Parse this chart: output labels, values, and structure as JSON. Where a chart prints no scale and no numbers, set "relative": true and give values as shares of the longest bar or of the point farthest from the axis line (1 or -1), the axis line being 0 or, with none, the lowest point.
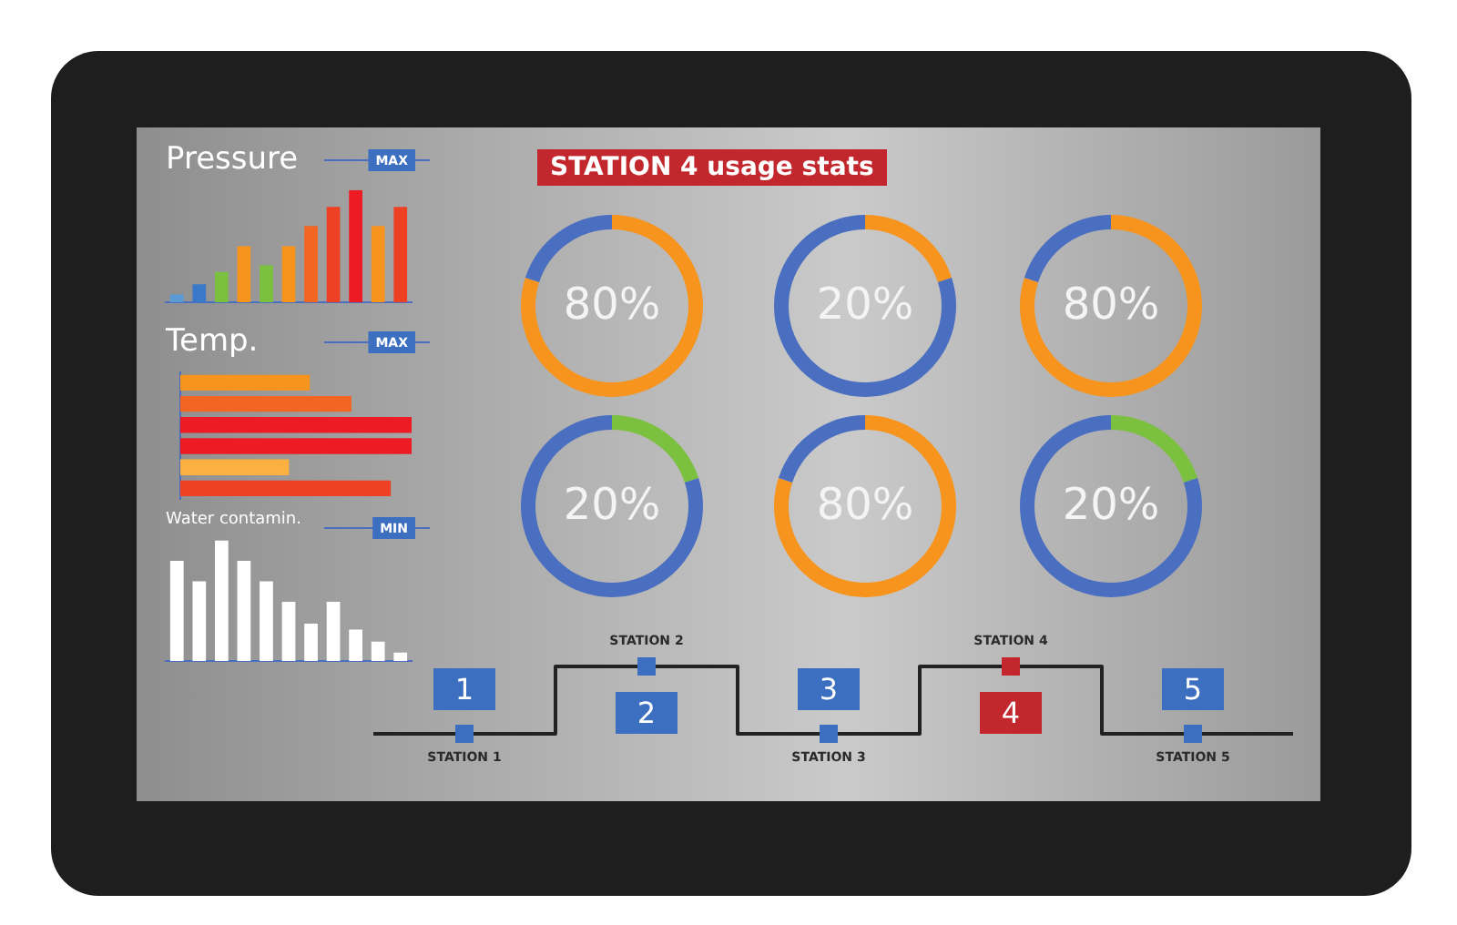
{
  "chart_data": [
    {
      "type": "bar",
      "title": "Pressure",
      "relative": true,
      "categories": [
        null,
        null,
        null,
        null,
        null,
        null,
        null,
        null,
        null,
        null,
        null
      ],
      "values": [
        0.07,
        0.16,
        0.27,
        0.5,
        0.33,
        0.5,
        0.68,
        0.85,
        1,
        0.68,
        0.85
      ],
      "colors": [
        "#5b9bd5",
        "#3a78c9",
        "#7cc040",
        "#f7941d",
        "#7cc040",
        "#f7941d",
        "#f26522",
        "#ee4023",
        "#ed1c24",
        "#f7941d",
        "#ee4023"
      ],
      "annotations": [
        "MAX"
      ]
    },
    {
      "type": "bar",
      "title": "Temp.",
      "relative": true,
      "orientation": "horizontal",
      "categories": [
        null,
        null,
        null,
        null,
        null,
        null
      ],
      "values": [
        0.56,
        0.74,
        1,
        1,
        0.47,
        0.91
      ],
      "colors": [
        "#f7941d",
        "#f26522",
        "#ed1c24",
        "#ed1c24",
        "#fbb040",
        "#ee4023"
      ],
      "annotations": [
        "MAX"
      ]
    },
    {
      "type": "bar",
      "title": "Water contamin.",
      "relative": true,
      "categories": [
        null,
        null,
        null,
        null,
        null,
        null,
        null,
        null,
        null,
        null,
        null
      ],
      "values": [
        0.83,
        0.66,
        1,
        0.83,
        0.66,
        0.49,
        0.31,
        0.49,
        0.26,
        0.16,
        0.07
      ],
      "color": "#ffffff",
      "annotations": [
        "MIN"
      ]
    },
    {
      "type": "donut",
      "title": "STATION 4 usage stats",
      "categories": [
        null,
        null
      ],
      "values": [
        80,
        20
      ],
      "colors": [
        "#f7941d",
        "#4a6fc1"
      ],
      "value_labels": [
        "80%",
        null
      ]
    },
    {
      "type": "donut",
      "categories": [
        null,
        null
      ],
      "values": [
        20,
        80
      ],
      "colors": [
        "#f7941d",
        "#4a6fc1"
      ],
      "value_labels": [
        "20%",
        null
      ]
    },
    {
      "type": "donut",
      "categories": [
        null,
        null
      ],
      "values": [
        80,
        20
      ],
      "colors": [
        "#f7941d",
        "#4a6fc1"
      ],
      "value_labels": [
        "80%",
        null
      ]
    },
    {
      "type": "donut",
      "categories": [
        null,
        null
      ],
      "values": [
        20,
        80
      ],
      "colors": [
        "#7cc040",
        "#4a6fc1"
      ],
      "value_labels": [
        "20%",
        null
      ]
    },
    {
      "type": "donut",
      "categories": [
        null,
        null
      ],
      "values": [
        80,
        20
      ],
      "colors": [
        "#f7941d",
        "#4a6fc1"
      ],
      "value_labels": [
        "80%",
        null
      ]
    },
    {
      "type": "donut",
      "categories": [
        null,
        null
      ],
      "values": [
        20,
        80
      ],
      "colors": [
        "#7cc040",
        "#4a6fc1"
      ],
      "value_labels": [
        "20%",
        null
      ]
    },
    {
      "type": "other",
      "categories": [
        "STATION 1",
        "STATION 2",
        "STATION 3",
        "STATION 4",
        "STATION 5"
      ],
      "values": [
        1,
        2,
        3,
        4,
        5
      ],
      "data_labels": true,
      "colors": [
        "#3d6fc0",
        "#3d6fc0",
        "#3d6fc0",
        "#c1272d",
        "#3d6fc0"
      ]
    }
  ]
}
